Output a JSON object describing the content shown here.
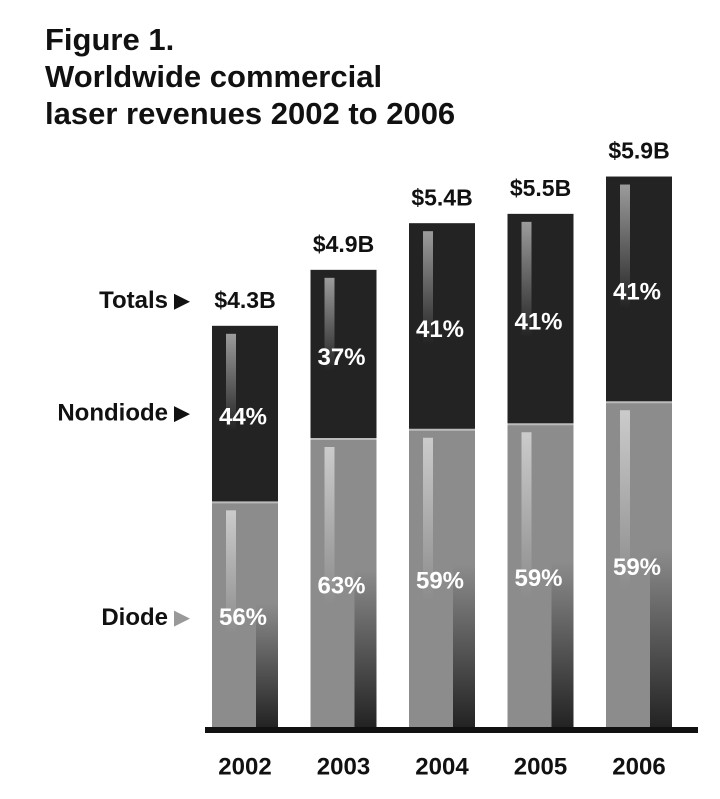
{
  "chart_data": {
    "type": "stacked-bar",
    "title": [
      "Figure 1.",
      "Worldwide commercial",
      "laser revenues 2002 to 2006"
    ],
    "categories": [
      "2002",
      "2003",
      "2004",
      "2005",
      "2006"
    ],
    "series": [
      {
        "name": "Diode",
        "color": "#8c8c8c",
        "values": [
          56,
          63,
          59,
          59,
          59
        ],
        "value_labels": [
          "56%",
          "63%",
          "59%",
          "59%",
          "59%"
        ]
      },
      {
        "name": "Nondiode",
        "color": "#232323",
        "values": [
          44,
          37,
          41,
          41,
          41
        ],
        "value_labels": [
          "44%",
          "37%",
          "41%",
          "41%",
          "41%"
        ]
      }
    ],
    "totals": {
      "name": "Totals",
      "values": [
        4.3,
        4.9,
        5.4,
        5.5,
        5.9
      ],
      "value_labels": [
        "$4.3B",
        "$4.9B",
        "$5.4B",
        "$5.5B",
        "$5.9B"
      ]
    }
  }
}
